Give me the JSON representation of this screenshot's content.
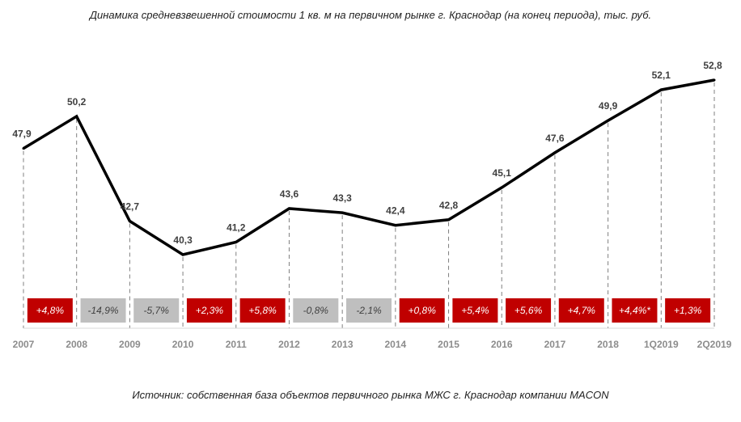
{
  "chart_data": {
    "type": "line",
    "title": "Динамика средневзвешенной стоимости 1 кв. м на первичном рынке г. Краснодар (на конец периода), тыс. руб.",
    "source": "Источник: собственная база объектов первичного рынка МЖС г. Краснодар компании MACON",
    "categories": [
      "2007",
      "2008",
      "2009",
      "2010",
      "2011",
      "2012",
      "2013",
      "2014",
      "2015",
      "2016",
      "2017",
      "2018",
      "1Q2019",
      "2Q2019"
    ],
    "values": [
      47.9,
      50.2,
      42.7,
      40.3,
      41.2,
      43.6,
      43.3,
      42.4,
      42.8,
      45.1,
      47.6,
      49.9,
      52.1,
      52.8
    ],
    "value_labels": [
      "47,9",
      "50,2",
      "42,7",
      "40,3",
      "41,2",
      "43,6",
      "43,3",
      "42,4",
      "42,8",
      "45,1",
      "47,6",
      "49,9",
      "52,1",
      "52,8"
    ],
    "changes": [
      {
        "label": "+4,8%",
        "trend": "up"
      },
      {
        "label": "-14,9%",
        "trend": "down"
      },
      {
        "label": "-5,7%",
        "trend": "down"
      },
      {
        "label": "+2,3%",
        "trend": "up"
      },
      {
        "label": "+5,8%",
        "trend": "up"
      },
      {
        "label": "-0,8%",
        "trend": "down"
      },
      {
        "label": "-2,1%",
        "trend": "down"
      },
      {
        "label": "+0,8%",
        "trend": "up"
      },
      {
        "label": "+5,4%",
        "trend": "up"
      },
      {
        "label": "+5,6%",
        "trend": "up"
      },
      {
        "label": "+4,7%",
        "trend": "up"
      },
      {
        "label": "+4,4%*",
        "trend": "up"
      },
      {
        "label": "+1,3%",
        "trend": "up"
      }
    ],
    "ylim": [
      30,
      56
    ],
    "grid": false,
    "legend": "none",
    "colors": {
      "line": "#000000",
      "up_box": "#c00000",
      "up_text": "#ffffff",
      "down_box": "#bfbfbf",
      "down_text": "#404040",
      "guide": "#808080"
    }
  }
}
